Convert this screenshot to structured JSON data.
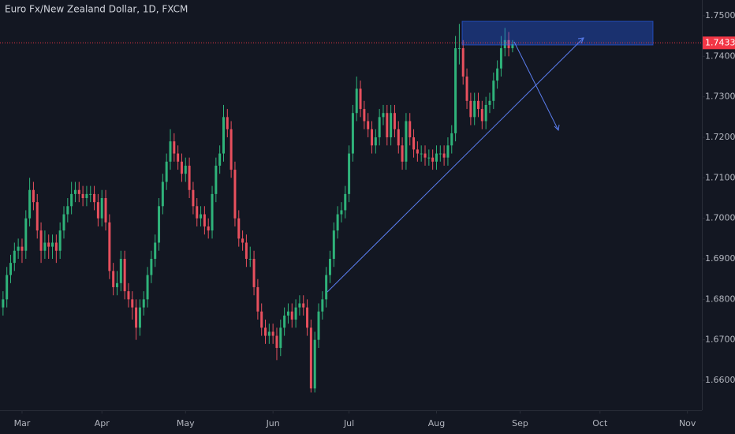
{
  "chart_data": {
    "type": "candlestick",
    "title": "Euro Fx/New Zealand Dollar, 1D, FXCM",
    "up_color": "#2fb37a",
    "down_color": "#e8505e",
    "last_price": 1.74332,
    "last_price_color": "#f23645",
    "xlim": [
      -5.8,
      178.8
    ],
    "ylim": [
      1.6526,
      1.7539
    ],
    "xticks": [
      {
        "value": 0,
        "label": "Mar"
      },
      {
        "value": 21,
        "label": "Apr"
      },
      {
        "value": 43,
        "label": "May"
      },
      {
        "value": 66,
        "label": "Jun"
      },
      {
        "value": 86,
        "label": "Jul"
      },
      {
        "value": 109,
        "label": "Aug"
      },
      {
        "value": 131,
        "label": "Sep"
      },
      {
        "value": 152,
        "label": "Oct"
      },
      {
        "value": 175,
        "label": "Nov"
      }
    ],
    "yticks": [
      {
        "value": 1.66,
        "label": "1.66000"
      },
      {
        "value": 1.67,
        "label": "1.67000"
      },
      {
        "value": 1.68,
        "label": "1.68000"
      },
      {
        "value": 1.69,
        "label": "1.69000"
      },
      {
        "value": 1.7,
        "label": "1.70000"
      },
      {
        "value": 1.71,
        "label": "1.71000"
      },
      {
        "value": 1.72,
        "label": "1.72000"
      },
      {
        "value": 1.73,
        "label": "1.73000"
      },
      {
        "value": 1.74,
        "label": "1.74000"
      },
      {
        "value": 1.75,
        "label": "1.75000"
      }
    ],
    "x": [
      -5,
      -4,
      -3,
      -2,
      -1,
      0,
      1,
      2,
      3,
      4,
      5,
      6,
      7,
      8,
      9,
      10,
      11,
      12,
      13,
      14,
      15,
      16,
      17,
      18,
      19,
      20,
      21,
      22,
      23,
      24,
      25,
      26,
      27,
      28,
      29,
      30,
      31,
      32,
      33,
      34,
      35,
      36,
      37,
      38,
      39,
      40,
      41,
      42,
      43,
      44,
      45,
      46,
      47,
      48,
      49,
      50,
      51,
      52,
      53,
      54,
      55,
      56,
      57,
      58,
      59,
      60,
      61,
      62,
      63,
      64,
      65,
      66,
      67,
      68,
      69,
      70,
      71,
      72,
      73,
      74,
      75,
      76,
      77,
      78,
      79,
      80,
      81,
      82,
      83,
      84,
      85,
      86,
      87,
      88,
      89,
      90,
      91,
      92,
      93,
      94,
      95,
      96,
      97,
      98,
      99,
      100,
      101,
      102,
      103,
      104,
      105,
      106,
      107,
      108,
      109,
      110,
      111,
      112,
      113,
      114,
      115,
      116,
      117,
      118,
      119,
      120,
      121,
      122,
      123,
      124,
      125,
      126,
      127,
      128,
      129
    ],
    "ohlc": [
      [
        1.678,
        1.682,
        1.676,
        1.68
      ],
      [
        1.68,
        1.688,
        1.678,
        1.686
      ],
      [
        1.686,
        1.691,
        1.684,
        1.689
      ],
      [
        1.689,
        1.694,
        1.687,
        1.692
      ],
      [
        1.692,
        1.695,
        1.69,
        1.693
      ],
      [
        1.693,
        1.695,
        1.689,
        1.692
      ],
      [
        1.692,
        1.702,
        1.69,
        1.7
      ],
      [
        1.7,
        1.71,
        1.698,
        1.707
      ],
      [
        1.707,
        1.709,
        1.702,
        1.704
      ],
      [
        1.704,
        1.706,
        1.695,
        1.697
      ],
      [
        1.697,
        1.699,
        1.689,
        1.692
      ],
      [
        1.692,
        1.697,
        1.69,
        1.694
      ],
      [
        1.694,
        1.696,
        1.69,
        1.693
      ],
      [
        1.693,
        1.696,
        1.69,
        1.694
      ],
      [
        1.694,
        1.696,
        1.689,
        1.692
      ],
      [
        1.692,
        1.699,
        1.69,
        1.697
      ],
      [
        1.697,
        1.703,
        1.695,
        1.701
      ],
      [
        1.701,
        1.705,
        1.699,
        1.703
      ],
      [
        1.703,
        1.709,
        1.701,
        1.706
      ],
      [
        1.706,
        1.709,
        1.704,
        1.707
      ],
      [
        1.707,
        1.709,
        1.704,
        1.706
      ],
      [
        1.706,
        1.708,
        1.703,
        1.705
      ],
      [
        1.705,
        1.708,
        1.703,
        1.706
      ],
      [
        1.706,
        1.708,
        1.704,
        1.706
      ],
      [
        1.706,
        1.708,
        1.702,
        1.704
      ],
      [
        1.704,
        1.706,
        1.698,
        1.7
      ],
      [
        1.7,
        1.707,
        1.698,
        1.705
      ],
      [
        1.705,
        1.707,
        1.697,
        1.699
      ],
      [
        1.699,
        1.701,
        1.685,
        1.687
      ],
      [
        1.687,
        1.689,
        1.681,
        1.683
      ],
      [
        1.683,
        1.687,
        1.681,
        1.684
      ],
      [
        1.684,
        1.692,
        1.682,
        1.69
      ],
      [
        1.69,
        1.692,
        1.68,
        1.682
      ],
      [
        1.682,
        1.684,
        1.678,
        1.68
      ],
      [
        1.68,
        1.682,
        1.675,
        1.678
      ],
      [
        1.678,
        1.68,
        1.67,
        1.673
      ],
      [
        1.673,
        1.68,
        1.671,
        1.678
      ],
      [
        1.678,
        1.682,
        1.676,
        1.68
      ],
      [
        1.68,
        1.688,
        1.678,
        1.686
      ],
      [
        1.686,
        1.692,
        1.684,
        1.69
      ],
      [
        1.69,
        1.696,
        1.688,
        1.694
      ],
      [
        1.694,
        1.705,
        1.692,
        1.703
      ],
      [
        1.703,
        1.711,
        1.701,
        1.709
      ],
      [
        1.709,
        1.716,
        1.707,
        1.714
      ],
      [
        1.714,
        1.722,
        1.712,
        1.719
      ],
      [
        1.719,
        1.721,
        1.714,
        1.716
      ],
      [
        1.716,
        1.718,
        1.712,
        1.714
      ],
      [
        1.714,
        1.716,
        1.709,
        1.711
      ],
      [
        1.711,
        1.715,
        1.709,
        1.713
      ],
      [
        1.713,
        1.715,
        1.705,
        1.707
      ],
      [
        1.707,
        1.709,
        1.701,
        1.703
      ],
      [
        1.703,
        1.705,
        1.698,
        1.7
      ],
      [
        1.7,
        1.703,
        1.698,
        1.701
      ],
      [
        1.701,
        1.703,
        1.696,
        1.698
      ],
      [
        1.698,
        1.7,
        1.695,
        1.697
      ],
      [
        1.697,
        1.708,
        1.695,
        1.706
      ],
      [
        1.706,
        1.715,
        1.704,
        1.713
      ],
      [
        1.713,
        1.718,
        1.711,
        1.716
      ],
      [
        1.716,
        1.728,
        1.714,
        1.725
      ],
      [
        1.725,
        1.727,
        1.72,
        1.722
      ],
      [
        1.722,
        1.724,
        1.71,
        1.712
      ],
      [
        1.712,
        1.714,
        1.698,
        1.7
      ],
      [
        1.7,
        1.702,
        1.693,
        1.695
      ],
      [
        1.695,
        1.697,
        1.692,
        1.694
      ],
      [
        1.694,
        1.696,
        1.688,
        1.69
      ],
      [
        1.69,
        1.693,
        1.688,
        1.69
      ],
      [
        1.69,
        1.692,
        1.681,
        1.683
      ],
      [
        1.683,
        1.685,
        1.675,
        1.677
      ],
      [
        1.677,
        1.679,
        1.671,
        1.673
      ],
      [
        1.673,
        1.675,
        1.669,
        1.671
      ],
      [
        1.671,
        1.674,
        1.669,
        1.672
      ],
      [
        1.672,
        1.674,
        1.669,
        1.671
      ],
      [
        1.671,
        1.673,
        1.665,
        1.668
      ],
      [
        1.668,
        1.675,
        1.666,
        1.673
      ],
      [
        1.673,
        1.678,
        1.671,
        1.676
      ],
      [
        1.676,
        1.679,
        1.674,
        1.677
      ],
      [
        1.677,
        1.679,
        1.673,
        1.675
      ],
      [
        1.675,
        1.68,
        1.673,
        1.678
      ],
      [
        1.678,
        1.681,
        1.676,
        1.679
      ],
      [
        1.679,
        1.681,
        1.676,
        1.678
      ],
      [
        1.678,
        1.68,
        1.671,
        1.673
      ],
      [
        1.673,
        1.675,
        1.657,
        1.658
      ],
      [
        1.658,
        1.672,
        1.657,
        1.67
      ],
      [
        1.67,
        1.679,
        1.668,
        1.677
      ],
      [
        1.677,
        1.682,
        1.675,
        1.68
      ],
      [
        1.68,
        1.688,
        1.678,
        1.686
      ],
      [
        1.686,
        1.692,
        1.684,
        1.69
      ],
      [
        1.69,
        1.699,
        1.688,
        1.697
      ],
      [
        1.697,
        1.703,
        1.695,
        1.701
      ],
      [
        1.701,
        1.704,
        1.699,
        1.702
      ],
      [
        1.702,
        1.708,
        1.7,
        1.706
      ],
      [
        1.706,
        1.718,
        1.704,
        1.716
      ],
      [
        1.716,
        1.728,
        1.714,
        1.726
      ],
      [
        1.726,
        1.735,
        1.724,
        1.732
      ],
      [
        1.732,
        1.734,
        1.725,
        1.727
      ],
      [
        1.727,
        1.729,
        1.722,
        1.724
      ],
      [
        1.724,
        1.726,
        1.72,
        1.722
      ],
      [
        1.722,
        1.724,
        1.716,
        1.718
      ],
      [
        1.718,
        1.722,
        1.716,
        1.72
      ],
      [
        1.72,
        1.727,
        1.718,
        1.725
      ],
      [
        1.725,
        1.728,
        1.723,
        1.726
      ],
      [
        1.726,
        1.728,
        1.718,
        1.72
      ],
      [
        1.72,
        1.728,
        1.718,
        1.726
      ],
      [
        1.726,
        1.728,
        1.72,
        1.722
      ],
      [
        1.722,
        1.724,
        1.716,
        1.718
      ],
      [
        1.718,
        1.72,
        1.712,
        1.714
      ],
      [
        1.714,
        1.726,
        1.712,
        1.724
      ],
      [
        1.724,
        1.726,
        1.718,
        1.72
      ],
      [
        1.72,
        1.722,
        1.715,
        1.717
      ],
      [
        1.717,
        1.719,
        1.714,
        1.716
      ],
      [
        1.716,
        1.718,
        1.714,
        1.716
      ],
      [
        1.716,
        1.718,
        1.713,
        1.715
      ],
      [
        1.715,
        1.717,
        1.713,
        1.715
      ],
      [
        1.715,
        1.717,
        1.712,
        1.714
      ],
      [
        1.714,
        1.718,
        1.712,
        1.716
      ],
      [
        1.716,
        1.718,
        1.714,
        1.716
      ],
      [
        1.716,
        1.718,
        1.713,
        1.715
      ],
      [
        1.715,
        1.72,
        1.713,
        1.718
      ],
      [
        1.718,
        1.723,
        1.716,
        1.721
      ],
      [
        1.721,
        1.745,
        1.719,
        1.742
      ],
      [
        1.742,
        1.748,
        1.738,
        1.742
      ],
      [
        1.742,
        1.744,
        1.733,
        1.735
      ],
      [
        1.735,
        1.737,
        1.727,
        1.729
      ],
      [
        1.729,
        1.731,
        1.723,
        1.725
      ],
      [
        1.725,
        1.731,
        1.723,
        1.729
      ],
      [
        1.729,
        1.731,
        1.725,
        1.727
      ],
      [
        1.727,
        1.729,
        1.722,
        1.724
      ],
      [
        1.724,
        1.73,
        1.722,
        1.728
      ],
      [
        1.728,
        1.731,
        1.726,
        1.729
      ],
      [
        1.729,
        1.736,
        1.727,
        1.734
      ],
      [
        1.734,
        1.739,
        1.732,
        1.737
      ],
      [
        1.737,
        1.745,
        1.735,
        1.742
      ],
      [
        1.742,
        1.747,
        1.74,
        1.744
      ],
      [
        1.744,
        1.746,
        1.74,
        1.742
      ],
      [
        1.742,
        1.744,
        1.741,
        1.743
      ]
    ]
  }
}
